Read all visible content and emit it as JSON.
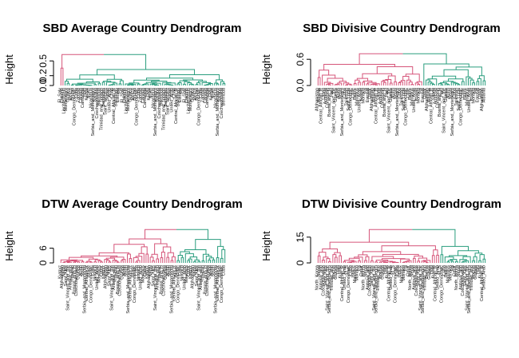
{
  "colors": {
    "red": "#d6557a",
    "green": "#2a9d7e",
    "axis": "#000000"
  },
  "chart_data": [
    {
      "type": "dendrogram",
      "title": "SBD Average Country Dendrogram",
      "ylabel": "Height",
      "yticks": [
        "0.0",
        "0.2",
        "0.5"
      ],
      "ytick_values": [
        0.0,
        0.2,
        0.5
      ],
      "ylim": [
        0,
        0.65
      ],
      "clusters": [
        {
          "color": "red",
          "share": 0.02
        },
        {
          "color": "green",
          "share": 0.98
        }
      ],
      "leaf_labels": [
        "El_Salv",
        "Colomb",
        "Liechtenstein",
        "Montenegro",
        "Guinea",
        "Belize",
        "Brunei",
        "Congo_Democratic",
        "Cuba",
        "Zambia",
        "Canada",
        "Cambodia",
        "Haiti",
        "Kenya",
        "North",
        "Nicaragua",
        "Serbia_and_Montenegro",
        "Samoa",
        "Czechoslovakia",
        "Bermuda",
        "Trinidad_and_Tobago",
        "Barbados",
        "Saint_Vincent",
        "Sudan",
        "United_Arab",
        "Chad",
        "Central_African_R",
        "Bahamas",
        "Estonia",
        "Fiji"
      ]
    },
    {
      "type": "dendrogram",
      "title": "SBD Divisive Country Dendrogram",
      "ylabel": "Height",
      "yticks": [
        "0.0",
        "0.6"
      ],
      "ytick_values": [
        0.0,
        0.6
      ],
      "ylim": [
        0,
        0.75
      ],
      "clusters": [
        {
          "color": "red",
          "share": 0.62
        },
        {
          "color": "green",
          "share": 0.38
        }
      ],
      "leaf_labels": [
        "Afghanistan",
        "Albania",
        "Central_African_R",
        "Latvia",
        "Armenia",
        "Cambodia",
        "Bosnia_and_H",
        "Haiti",
        "Saint_Vincent_and_the",
        "Guinea",
        "North",
        "Nepal",
        "Serbia_and_Montenegro",
        "Cuba",
        "Tajikistan",
        "Saint_Lucia",
        "Congo_Democratic",
        "Chile",
        "Belize",
        "Mauritius",
        "United_Arab",
        "Kuwait",
        "Monaco",
        "Fiji",
        "Estonia",
        "Qatar"
      ]
    },
    {
      "type": "dendrogram",
      "title": "DTW Average Country Dendrogram",
      "ylabel": "Height",
      "yticks": [
        "0",
        "6"
      ],
      "ytick_values": [
        0,
        6
      ],
      "ylim": [
        0,
        14
      ],
      "clusters": [
        {
          "color": "red",
          "share": 0.7
        },
        {
          "color": "green",
          "share": 0.3
        }
      ],
      "leaf_labels": [
        "Kyrgyz",
        "Afghanistan",
        "Nepal",
        "Saint_Kitts",
        "Saint_Vincent_and_the",
        "Antigua_and",
        "Trinidad",
        "Bosnia_and_H",
        "Czechoslovakia",
        "Guinea",
        "North",
        "South",
        "Serbia_and_Montenegro",
        "Central_African_R",
        "Belize",
        "Congo_Democratic",
        "Cuba",
        "Monaco",
        "United_Arab",
        "Mauritius",
        "Qatar"
      ]
    },
    {
      "type": "dendrogram",
      "title": "DTW Divisive Country Dendrogram",
      "ylabel": "Height",
      "yticks": [
        "0",
        "15"
      ],
      "ytick_values": [
        0,
        15
      ],
      "ylim": [
        0,
        20
      ],
      "clusters": [
        {
          "color": "red",
          "share": 0.73
        },
        {
          "color": "green",
          "share": 0.27
        }
      ],
      "leaf_labels": [
        "North_Korea",
        "Nepal",
        "Antigua_and",
        "Czechoslovakia",
        "Saint_Kitts",
        "Saint_Vincent_and_the",
        "Serbia_and_Montenegro",
        "Trinidad_and",
        "Bosnia",
        "Guinea",
        "Haiti",
        "Kuwait",
        "Central_African_R",
        "United_Arab",
        "El_S",
        "Congo_Democratic",
        "Cuba",
        "Belize",
        "Mauritius",
        "Monaco",
        "Fiji",
        "Qatar"
      ]
    }
  ]
}
